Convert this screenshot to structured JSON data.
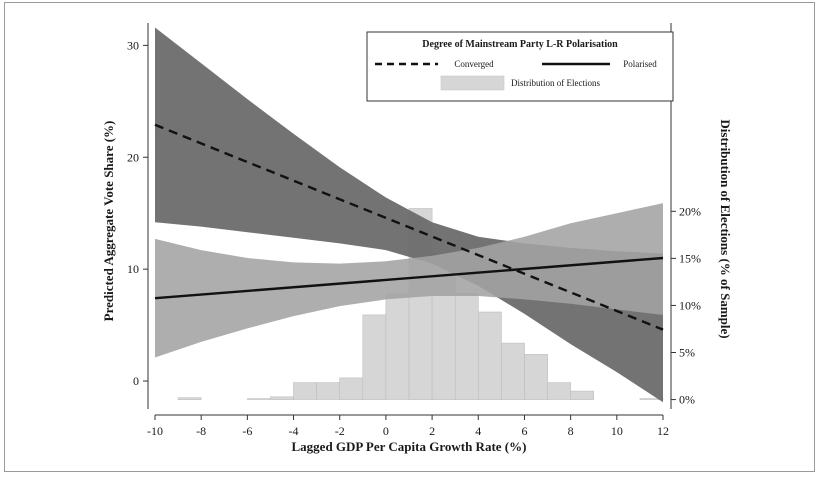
{
  "chart_data": {
    "type": "line",
    "xlabel": "Lagged GDP Per Capita Growth Rate (%)",
    "ylabel": "Predicted Aggregate Vote Share (%)",
    "ylabel_right": "Distribution of Elections (% of Sample)",
    "xlim": [
      -10,
      12
    ],
    "ylim": [
      -2.5,
      32
    ],
    "ylim_right": [
      -1,
      40
    ],
    "x_ticks": [
      "-10",
      "-8",
      "-6",
      "-4",
      "-2",
      "0",
      "2",
      "4",
      "6",
      "8",
      "10",
      "12"
    ],
    "y_ticks": [
      "0",
      "10",
      "20",
      "30"
    ],
    "y_right_ticks": [
      "0%",
      "5%",
      "10%",
      "15%",
      "20%"
    ],
    "legend": {
      "title": "Degree of Mainstream Party L-R Polarisation",
      "placement": "top-right",
      "entries": [
        "Converged",
        "Polarised",
        "Distribution of Elections"
      ]
    },
    "series": [
      {
        "name": "Converged",
        "style": "dashed",
        "x": [
          -10,
          12
        ],
        "y": [
          22.9,
          4.6
        ],
        "ci_x": [
          -10,
          -8,
          -6,
          -4,
          -2,
          0,
          2,
          4,
          6,
          8,
          10,
          12
        ],
        "ci_lower": [
          14.2,
          13.8,
          13.3,
          12.8,
          12.3,
          11.7,
          10.5,
          8.5,
          6.0,
          3.3,
          0.8,
          -1.9
        ],
        "ci_upper": [
          31.6,
          28.4,
          25.2,
          22.1,
          19.1,
          16.4,
          14.2,
          12.9,
          12.3,
          11.9,
          11.6,
          11.4
        ],
        "ci_color": "#6b6b6b"
      },
      {
        "name": "Polarised",
        "style": "solid",
        "x": [
          -10,
          12
        ],
        "y": [
          7.4,
          11.0
        ],
        "ci_x": [
          -10,
          -8,
          -6,
          -4,
          -2,
          0,
          2,
          4,
          6,
          8,
          10,
          12
        ],
        "ci_lower": [
          2.1,
          3.5,
          4.7,
          5.8,
          6.7,
          7.3,
          7.6,
          7.6,
          7.3,
          6.9,
          6.4,
          5.9
        ],
        "ci_upper": [
          12.7,
          11.7,
          11.0,
          10.6,
          10.5,
          10.7,
          11.2,
          11.9,
          12.9,
          14.1,
          15.0,
          15.9
        ],
        "ci_color": "#a3a3a3"
      }
    ],
    "histogram": {
      "name": "Distribution of Elections",
      "bin_width": 1,
      "bins": [
        {
          "x": -8.5,
          "pct": 0.2
        },
        {
          "x": -5.5,
          "pct": 0.1
        },
        {
          "x": -4.5,
          "pct": 0.3
        },
        {
          "x": -3.5,
          "pct": 1.8
        },
        {
          "x": -2.5,
          "pct": 1.8
        },
        {
          "x": -1.5,
          "pct": 2.3
        },
        {
          "x": -0.5,
          "pct": 9.0
        },
        {
          "x": 0.5,
          "pct": 11.2
        },
        {
          "x": 1.5,
          "pct": 20.3
        },
        {
          "x": 2.5,
          "pct": 15.5
        },
        {
          "x": 3.5,
          "pct": 11.3
        },
        {
          "x": 4.5,
          "pct": 9.3
        },
        {
          "x": 5.5,
          "pct": 6.0
        },
        {
          "x": 6.5,
          "pct": 4.8
        },
        {
          "x": 7.5,
          "pct": 1.8
        },
        {
          "x": 8.5,
          "pct": 0.9
        },
        {
          "x": 11.5,
          "pct": 0.1
        }
      ],
      "color": "#d6d6d6"
    }
  }
}
